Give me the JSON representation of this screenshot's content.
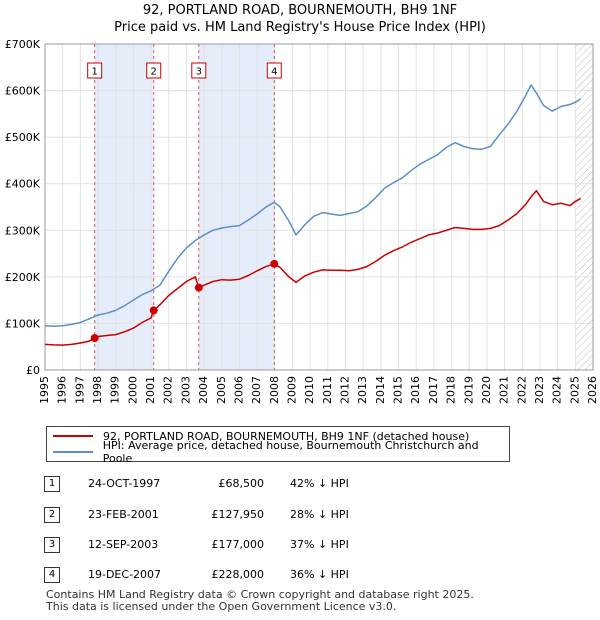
{
  "chart_data": {
    "type": "line",
    "title": "92, PORTLAND ROAD, BOURNEMOUTH, BH9 1NF",
    "subtitle": "Price paid vs. HM Land Registry's House Price Index (HPI)",
    "xlim": [
      1995,
      2026
    ],
    "ylim": [
      0,
      700000
    ],
    "x_ticks": [
      1995,
      1996,
      1997,
      1998,
      1999,
      2000,
      2001,
      2002,
      2003,
      2004,
      2005,
      2006,
      2007,
      2008,
      2009,
      2010,
      2011,
      2012,
      2013,
      2014,
      2015,
      2016,
      2017,
      2018,
      2019,
      2020,
      2021,
      2022,
      2023,
      2024,
      2025,
      2026
    ],
    "y_ticks": [
      {
        "value": 0,
        "label": "£0"
      },
      {
        "value": 100000,
        "label": "£100K"
      },
      {
        "value": 200000,
        "label": "£200K"
      },
      {
        "value": 300000,
        "label": "£300K"
      },
      {
        "value": 400000,
        "label": "£400K"
      },
      {
        "value": 500000,
        "label": "£500K"
      },
      {
        "value": 600000,
        "label": "£600K"
      },
      {
        "value": 700000,
        "label": "£700K"
      }
    ],
    "grid": true,
    "shaded_periods": [
      [
        1997.81,
        2001.15
      ],
      [
        2003.7,
        2007.97
      ]
    ],
    "future_hatch_from": 2025.0,
    "series": [
      {
        "name": "92, PORTLAND ROAD, BOURNEMOUTH, BH9 1NF (detached house)",
        "color": "#cc0000",
        "x": [
          1995.0,
          1995.5,
          1996.0,
          1996.5,
          1997.0,
          1997.5,
          1997.81,
          1998.0,
          1998.5,
          1999.0,
          1999.5,
          2000.0,
          2000.5,
          2001.0,
          2001.15,
          2001.5,
          2002.0,
          2002.5,
          2003.0,
          2003.5,
          2003.7,
          2004.0,
          2004.5,
          2005.0,
          2005.5,
          2006.0,
          2006.5,
          2007.0,
          2007.5,
          2007.97,
          2008.3,
          2008.8,
          2009.2,
          2009.7,
          2010.2,
          2010.7,
          2011.2,
          2011.7,
          2012.2,
          2012.7,
          2013.2,
          2013.7,
          2014.2,
          2014.7,
          2015.2,
          2015.7,
          2016.2,
          2016.7,
          2017.2,
          2017.7,
          2018.2,
          2018.7,
          2019.2,
          2019.7,
          2020.2,
          2020.7,
          2021.2,
          2021.7,
          2022.2,
          2022.5,
          2022.8,
          2023.2,
          2023.7,
          2024.2,
          2024.7,
          2025.0,
          2025.3
        ],
        "values": [
          55000,
          54000,
          53500,
          55000,
          58000,
          62000,
          68500,
          72000,
          74000,
          76000,
          82000,
          90000,
          102000,
          112000,
          127950,
          140000,
          160000,
          175000,
          190000,
          200000,
          177000,
          182000,
          190000,
          194000,
          193000,
          195000,
          203000,
          213000,
          222000,
          228000,
          220000,
          200000,
          188000,
          202000,
          210000,
          215000,
          214000,
          214000,
          213000,
          216000,
          222000,
          233000,
          246000,
          256000,
          264000,
          274000,
          282000,
          290000,
          294000,
          300000,
          306000,
          304000,
          302000,
          302000,
          304000,
          310000,
          322000,
          336000,
          356000,
          372000,
          385000,
          362000,
          355000,
          358000,
          353000,
          362000,
          368000
        ]
      },
      {
        "name": "HPI: Average price, detached house, Bournemouth Christchurch and Poole",
        "color": "#5b8fcc",
        "x": [
          1995.0,
          1995.5,
          1996.0,
          1996.5,
          1997.0,
          1997.5,
          1998.0,
          1998.5,
          1999.0,
          1999.5,
          2000.0,
          2000.5,
          2001.0,
          2001.5,
          2002.0,
          2002.5,
          2003.0,
          2003.5,
          2004.0,
          2004.5,
          2005.0,
          2005.5,
          2006.0,
          2006.5,
          2007.0,
          2007.5,
          2007.97,
          2008.3,
          2008.8,
          2009.2,
          2009.7,
          2010.2,
          2010.7,
          2011.2,
          2011.7,
          2012.2,
          2012.7,
          2013.2,
          2013.7,
          2014.2,
          2014.7,
          2015.2,
          2015.7,
          2016.2,
          2016.7,
          2017.2,
          2017.7,
          2018.2,
          2018.7,
          2019.2,
          2019.7,
          2020.2,
          2020.7,
          2021.2,
          2021.7,
          2022.2,
          2022.5,
          2022.8,
          2023.2,
          2023.7,
          2024.2,
          2024.7,
          2025.0,
          2025.3
        ],
        "values": [
          95000,
          94000,
          95000,
          98000,
          102000,
          110000,
          118000,
          122000,
          128000,
          138000,
          150000,
          162000,
          170000,
          182000,
          212000,
          240000,
          262000,
          278000,
          290000,
          300000,
          305000,
          308000,
          310000,
          322000,
          335000,
          350000,
          360000,
          350000,
          320000,
          290000,
          312000,
          330000,
          338000,
          335000,
          332000,
          336000,
          340000,
          352000,
          370000,
          390000,
          402000,
          412000,
          428000,
          442000,
          452000,
          462000,
          478000,
          488000,
          480000,
          475000,
          474000,
          480000,
          505000,
          528000,
          556000,
          590000,
          612000,
          595000,
          568000,
          556000,
          566000,
          570000,
          575000,
          582000
        ]
      }
    ],
    "sales": [
      {
        "label": "1",
        "x": 1997.81,
        "value": 68500
      },
      {
        "label": "2",
        "x": 2001.15,
        "value": 127950
      },
      {
        "label": "3",
        "x": 2003.7,
        "value": 177000
      },
      {
        "label": "4",
        "x": 2007.97,
        "value": 228000
      }
    ]
  },
  "legend": {
    "property_label": "92, PORTLAND ROAD, BOURNEMOUTH, BH9 1NF (detached house)",
    "hpi_label": "HPI: Average price, detached house, Bournemouth Christchurch and Poole"
  },
  "sales_table": [
    {
      "num": "1",
      "date": "24-OCT-1997",
      "price": "£68,500",
      "pct": "42% ↓ HPI"
    },
    {
      "num": "2",
      "date": "23-FEB-2001",
      "price": "£127,950",
      "pct": "28% ↓ HPI"
    },
    {
      "num": "3",
      "date": "12-SEP-2003",
      "price": "£177,000",
      "pct": "37% ↓ HPI"
    },
    {
      "num": "4",
      "date": "19-DEC-2007",
      "price": "£228,000",
      "pct": "36% ↓ HPI"
    }
  ],
  "footer": {
    "line1": "Contains HM Land Registry data © Crown copyright and database right 2025.",
    "line2": "This data is licensed under the Open Government Licence v3.0."
  }
}
